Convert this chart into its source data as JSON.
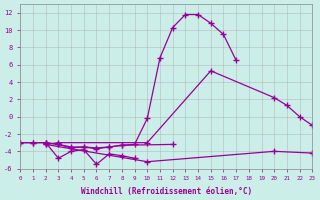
{
  "xlabel": "Windchill (Refroidissement éolien,°C)",
  "background_color": "#cceee8",
  "line_color": "#990099",
  "grid_color": "#aaaaaa",
  "xlim": [
    0,
    23
  ],
  "ylim": [
    -6,
    13
  ],
  "xticks": [
    0,
    1,
    2,
    3,
    4,
    5,
    6,
    7,
    8,
    9,
    10,
    11,
    12,
    13,
    14,
    15,
    16,
    17,
    18,
    19,
    20,
    21,
    22,
    23
  ],
  "yticks": [
    -6,
    -4,
    -2,
    0,
    2,
    4,
    6,
    8,
    10,
    12
  ],
  "series": [
    {
      "x": [
        0,
        1,
        2,
        3,
        4,
        5,
        6,
        7,
        8,
        9
      ],
      "y": [
        -3.0,
        -3.0,
        -3.0,
        -4.8,
        -4.0,
        -3.8,
        -5.5,
        -4.3,
        -4.5,
        -4.8
      ],
      "marker": true
    },
    {
      "x": [
        0,
        1,
        2,
        3,
        4,
        5,
        6,
        7,
        8,
        12
      ],
      "y": [
        -3.0,
        -3.0,
        -3.0,
        -3.2,
        -3.6,
        -3.5,
        -3.7,
        -3.5,
        -3.3,
        -3.2
      ],
      "marker": true
    },
    {
      "x": [
        2,
        3,
        4,
        5,
        6,
        7,
        8,
        9,
        10,
        11,
        12,
        13,
        14,
        15,
        16,
        17
      ],
      "y": [
        -3.0,
        -3.2,
        -3.5,
        -3.5,
        -3.6,
        -3.5,
        -3.3,
        -3.2,
        -0.2,
        6.8,
        10.3,
        11.8,
        11.8,
        10.8,
        9.5,
        6.5
      ],
      "marker": true
    },
    {
      "x": [
        2,
        3,
        10,
        15,
        20,
        21,
        22,
        23
      ],
      "y": [
        -3.2,
        -3.0,
        -3.0,
        5.3,
        2.2,
        1.3,
        0.0,
        -1.0
      ],
      "marker": true
    },
    {
      "x": [
        2,
        10,
        20,
        23
      ],
      "y": [
        -3.2,
        -5.2,
        -4.0,
        -4.2
      ],
      "marker": true
    }
  ]
}
